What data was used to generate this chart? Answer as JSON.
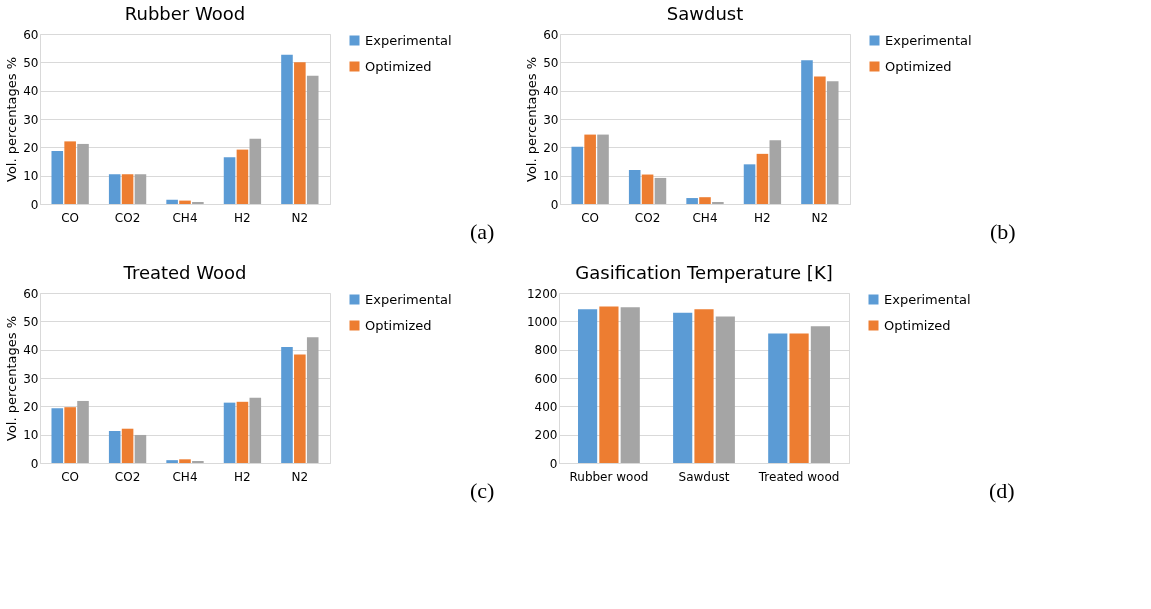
{
  "chart_data": [
    {
      "type": "bar",
      "title": "Rubber Wood",
      "ylabel": "Vol. percentages %",
      "categories": [
        "CO",
        "CO2",
        "CH4",
        "H2",
        "N2"
      ],
      "ylim": [
        0,
        60
      ],
      "yticks": [
        0,
        10,
        20,
        30,
        40,
        50,
        60
      ],
      "grid": "y",
      "legend": "right",
      "annotations": [
        "(a)"
      ],
      "series": [
        {
          "name": "Experimental",
          "color": "#5b9bd5",
          "values": [
            18.7,
            10.5,
            1.5,
            16.5,
            52.7
          ]
        },
        {
          "name": "Optimized",
          "color": "#ed7d31",
          "values": [
            22.1,
            10.5,
            1.2,
            19.2,
            50.0
          ]
        },
        {
          "color": "#a5a5a5",
          "values": [
            21.2,
            10.5,
            0.7,
            23.0,
            45.3
          ]
        }
      ]
    },
    {
      "type": "bar",
      "title": "Sawdust",
      "ylabel": "Vol. percentages %",
      "categories": [
        "CO",
        "CO2",
        "CH4",
        "H2",
        "N2"
      ],
      "ylim": [
        0,
        60
      ],
      "yticks": [
        0,
        10,
        20,
        30,
        40,
        50,
        60
      ],
      "grid": "y",
      "legend": "right",
      "annotations": [
        "(b)"
      ],
      "series": [
        {
          "name": "Experimental",
          "color": "#5b9bd5",
          "values": [
            20.2,
            12.0,
            2.1,
            14.0,
            50.7
          ]
        },
        {
          "name": "Optimized",
          "color": "#ed7d31",
          "values": [
            24.5,
            10.4,
            2.4,
            17.7,
            45.0
          ]
        },
        {
          "color": "#a5a5a5",
          "values": [
            24.5,
            9.2,
            0.7,
            22.5,
            43.3
          ]
        }
      ]
    },
    {
      "type": "bar",
      "title": "Treated Wood",
      "ylabel": "Vol. percentages %",
      "categories": [
        "CO",
        "CO2",
        "CH4",
        "H2",
        "N2"
      ],
      "ylim": [
        0,
        60
      ],
      "yticks": [
        0,
        10,
        20,
        30,
        40,
        50,
        60
      ],
      "grid": "y",
      "legend": "right",
      "annotations": [
        "(c)"
      ],
      "series": [
        {
          "name": "Experimental",
          "color": "#5b9bd5",
          "values": [
            19.3,
            11.3,
            1.0,
            21.3,
            40.9
          ]
        },
        {
          "name": "Optimized",
          "color": "#ed7d31",
          "values": [
            19.7,
            12.1,
            1.3,
            21.6,
            38.3
          ]
        },
        {
          "color": "#a5a5a5",
          "values": [
            21.9,
            9.9,
            0.7,
            23.0,
            44.4
          ]
        }
      ]
    },
    {
      "type": "bar",
      "title": "Gasification Temperature [K]",
      "categories": [
        "Rubber wood",
        "Sawdust",
        "Treated wood"
      ],
      "ylim": [
        0,
        1200
      ],
      "yticks": [
        0,
        200,
        400,
        600,
        800,
        1000,
        1200
      ],
      "grid": "y",
      "legend": "right",
      "annotations": [
        "(d)"
      ],
      "series": [
        {
          "name": "Experimental",
          "color": "#5b9bd5",
          "values": [
            1085,
            1060,
            915
          ]
        },
        {
          "name": "Optimized",
          "color": "#ed7d31",
          "values": [
            1105,
            1085,
            915
          ]
        },
        {
          "color": "#a5a5a5",
          "values": [
            1100,
            1035,
            965
          ]
        }
      ]
    }
  ]
}
